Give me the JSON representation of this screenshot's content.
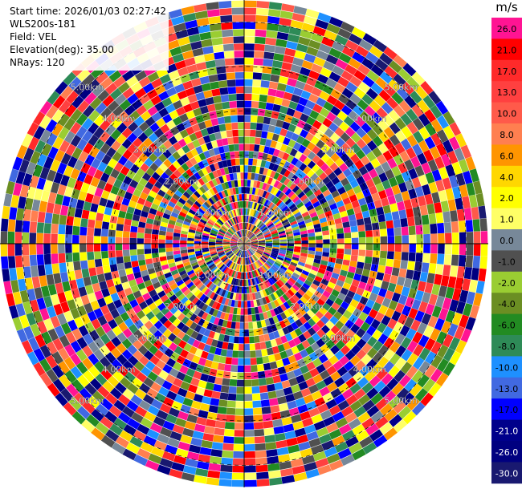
{
  "info": {
    "start_time": "Start time: 2026/01/03 02:27:42",
    "instrument": "WLS200s-181",
    "field": "Field: VEL",
    "elevation": "Elevation(deg): 35.00",
    "nrays": "NRays: 120"
  },
  "chart_data": {
    "type": "heatmap",
    "projection": "polar-ppi",
    "field": "VEL",
    "nrays": 120,
    "range_rings_km": [
      1.0,
      2.0,
      3.0,
      4.0,
      5.0
    ],
    "ring_labels": [
      "1.00km",
      "2.00km",
      "3.00km",
      "4.00km",
      "5.00km"
    ],
    "max_range_km": 5.5,
    "colorbar": {
      "unit": "m/s",
      "ticks": [
        "26.0",
        "21.0",
        "17.0",
        "13.0",
        "10.0",
        "8.0",
        "6.0",
        "4.0",
        "2.0",
        "1.0",
        "0.0",
        "-1.0",
        "-2.0",
        "-4.0",
        "-6.0",
        "-8.0",
        "-10.0",
        "-13.0",
        "-17.0",
        "-21.0",
        "-26.0",
        "-30.0"
      ],
      "colors": [
        "#ff1493",
        "#ff0000",
        "#ff2a2a",
        "#ff4040",
        "#ff5a4a",
        "#ff7f50",
        "#ff9500",
        "#ffd700",
        "#ffff00",
        "#ffff66",
        "#778899",
        "#505050",
        "#9acd32",
        "#6b8e23",
        "#228b22",
        "#2e8b57",
        "#1e90ff",
        "#4169e1",
        "#0000ff",
        "#00008b",
        "#000080",
        "#191970"
      ]
    }
  }
}
